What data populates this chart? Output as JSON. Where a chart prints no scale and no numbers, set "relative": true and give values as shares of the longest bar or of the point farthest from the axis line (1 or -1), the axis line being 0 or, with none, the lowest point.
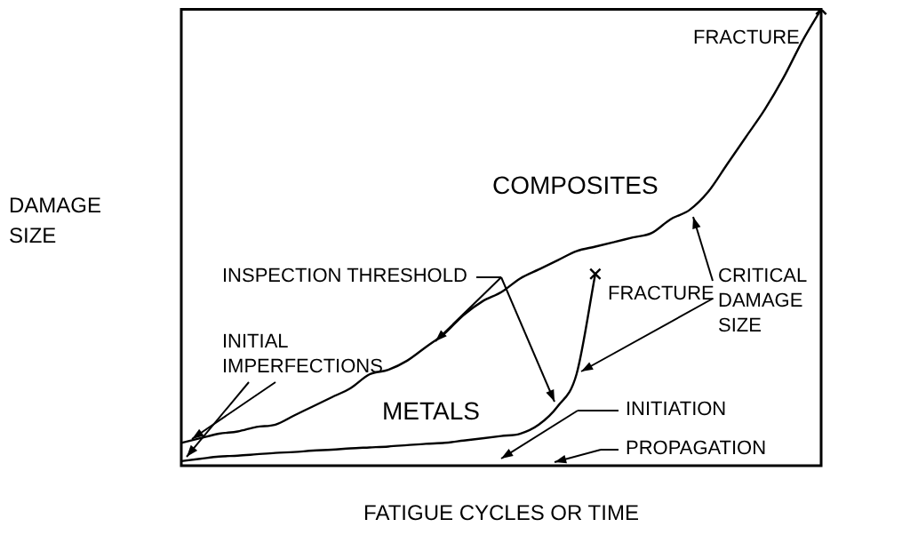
{
  "chart_data": {
    "type": "line",
    "relative": true,
    "xlabel": "FATIGUE CYCLES OR TIME",
    "ylabel": "DAMAGE SIZE",
    "categories": [
      null,
      null,
      null,
      null,
      null,
      null,
      null,
      null,
      null,
      null,
      null,
      null,
      null,
      null,
      null,
      null,
      null,
      null,
      null,
      null,
      null,
      null,
      null,
      null,
      null,
      null,
      null,
      null,
      null,
      null,
      null,
      null,
      null,
      null,
      null
    ],
    "series": [
      {
        "name": "COMPOSITES",
        "color": "#000000",
        "values": [
          0.05,
          0.06,
          0.07,
          0.075,
          0.085,
          0.09,
          0.11,
          0.13,
          0.15,
          0.17,
          0.2,
          0.21,
          0.23,
          0.26,
          0.29,
          0.33,
          0.36,
          0.38,
          0.41,
          0.43,
          0.45,
          0.47,
          0.48,
          0.49,
          0.5,
          0.51,
          0.54,
          0.56,
          0.6,
          0.66,
          0.72,
          0.78,
          0.85,
          0.93,
          1
        ]
      },
      {
        "name": "METALS",
        "color": "#000000",
        "values": [
          0.01,
          0.015,
          0.02,
          0.022,
          0.025,
          0.028,
          0.03,
          0.033,
          0.035,
          0.038,
          0.04,
          0.042,
          0.045,
          0.048,
          0.05,
          0.055,
          0.06,
          0.065,
          0.07,
          0.09,
          0.13,
          0.2,
          0.42,
          null,
          null,
          null,
          null,
          null,
          null,
          null,
          null,
          null,
          null,
          null,
          null
        ]
      }
    ],
    "annotations": [
      "FRACTURE",
      "INSPECTION THRESHOLD",
      "FRACTURE",
      "CRITICAL DAMAGE SIZE",
      "INITIAL IMPERFECTIONS",
      "INITIATION",
      "PROPAGATION"
    ],
    "legend": false
  }
}
